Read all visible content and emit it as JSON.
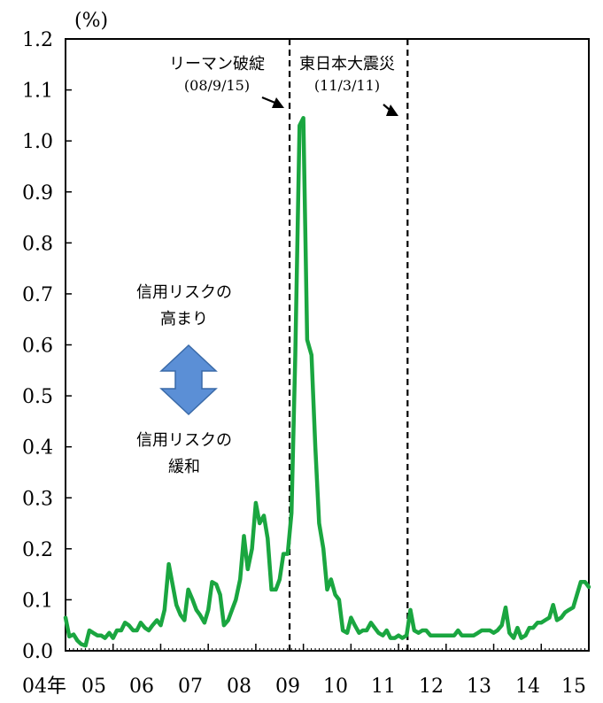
{
  "chart_data": {
    "type": "line",
    "unit": "(%)",
    "ylim": [
      0.0,
      1.2
    ],
    "y_ticks": [
      "0.0",
      "0.1",
      "0.2",
      "0.3",
      "0.4",
      "0.5",
      "0.6",
      "0.7",
      "0.8",
      "0.9",
      "1.0",
      "1.1",
      "1.2"
    ],
    "x_tick_labels": [
      "04年",
      "05",
      "06",
      "07",
      "08",
      "09",
      "10",
      "11",
      "12",
      "13",
      "14",
      "15"
    ],
    "x_range": [
      2004.0,
      2015.0
    ],
    "grid": false,
    "legend": "none",
    "colors": {
      "series": "#1aa640",
      "arrow": "#5b8fd6",
      "arrow_border": "#3a6aa8"
    },
    "series": [
      {
        "x": [
          2004.0,
          2004.08,
          2004.17,
          2004.25,
          2004.33,
          2004.42,
          2004.5,
          2004.58,
          2004.67,
          2004.75,
          2004.83,
          2004.92,
          2005.0,
          2005.08,
          2005.17,
          2005.25,
          2005.33,
          2005.42,
          2005.5,
          2005.58,
          2005.67,
          2005.75,
          2005.83,
          2005.92,
          2006.0,
          2006.08,
          2006.17,
          2006.25,
          2006.33,
          2006.42,
          2006.5,
          2006.58,
          2006.67,
          2006.75,
          2006.83,
          2006.92,
          2007.0,
          2007.08,
          2007.17,
          2007.25,
          2007.33,
          2007.42,
          2007.5,
          2007.58,
          2007.67,
          2007.75,
          2007.83,
          2007.92,
          2008.0,
          2008.08,
          2008.17,
          2008.25,
          2008.33,
          2008.42,
          2008.5,
          2008.58,
          2008.67,
          2008.75,
          2008.83,
          2008.92,
          2009.0,
          2009.08,
          2009.17,
          2009.25,
          2009.33,
          2009.42,
          2009.5,
          2009.58,
          2009.67,
          2009.75,
          2009.83,
          2009.92,
          2010.0,
          2010.08,
          2010.17,
          2010.25,
          2010.33,
          2010.42,
          2010.5,
          2010.58,
          2010.67,
          2010.75,
          2010.83,
          2010.92,
          2011.0,
          2011.08,
          2011.17,
          2011.25,
          2011.33,
          2011.42,
          2011.5,
          2011.58,
          2011.67,
          2011.75,
          2011.83,
          2011.92,
          2012.0,
          2012.08,
          2012.17,
          2012.25,
          2012.33,
          2012.42,
          2012.5,
          2012.58,
          2012.67,
          2012.75,
          2012.83,
          2012.92,
          2013.0,
          2013.08,
          2013.17,
          2013.25,
          2013.33,
          2013.42,
          2013.5,
          2013.58,
          2013.67,
          2013.75,
          2013.83,
          2013.92,
          2014.0,
          2014.08,
          2014.17,
          2014.25,
          2014.33,
          2014.42,
          2014.5,
          2014.58,
          2014.67,
          2014.75,
          2014.83,
          2014.92,
          2015.0
        ],
        "y": [
          0.065,
          0.028,
          0.032,
          0.02,
          0.013,
          0.01,
          0.04,
          0.035,
          0.03,
          0.03,
          0.025,
          0.035,
          0.025,
          0.04,
          0.04,
          0.055,
          0.05,
          0.04,
          0.04,
          0.055,
          0.045,
          0.04,
          0.05,
          0.06,
          0.05,
          0.08,
          0.17,
          0.13,
          0.09,
          0.07,
          0.06,
          0.12,
          0.1,
          0.08,
          0.07,
          0.055,
          0.08,
          0.135,
          0.13,
          0.11,
          0.05,
          0.06,
          0.08,
          0.1,
          0.14,
          0.225,
          0.16,
          0.2,
          0.29,
          0.25,
          0.265,
          0.22,
          0.12,
          0.12,
          0.14,
          0.19,
          0.19,
          0.27,
          0.58,
          1.03,
          1.045,
          0.61,
          0.58,
          0.4,
          0.25,
          0.2,
          0.12,
          0.14,
          0.11,
          0.1,
          0.04,
          0.035,
          0.065,
          0.05,
          0.035,
          0.04,
          0.04,
          0.055,
          0.045,
          0.035,
          0.03,
          0.04,
          0.025,
          0.025,
          0.03,
          0.025,
          0.03,
          0.08,
          0.04,
          0.035,
          0.04,
          0.04,
          0.03,
          0.03,
          0.03,
          0.03,
          0.03,
          0.03,
          0.03,
          0.04,
          0.03,
          0.03,
          0.03,
          0.03,
          0.035,
          0.04,
          0.04,
          0.04,
          0.035,
          0.04,
          0.05,
          0.085,
          0.035,
          0.025,
          0.045,
          0.025,
          0.03,
          0.045,
          0.045,
          0.055,
          0.055,
          0.06,
          0.065,
          0.09,
          0.06,
          0.065,
          0.075,
          0.08,
          0.085,
          0.11,
          0.135,
          0.135,
          0.125
        ]
      }
    ],
    "events": [
      {
        "label": "リーマン破綻",
        "date": "(08/9/15)",
        "x": 2008.71
      },
      {
        "label": "東日本大震災",
        "date": "(11/3/11)",
        "x": 2011.19
      }
    ],
    "annotations": {
      "up_text_line1": "信用リスクの",
      "up_text_line2": "高まり",
      "down_text_line1": "信用リスクの",
      "down_text_line2": "緩和"
    }
  }
}
